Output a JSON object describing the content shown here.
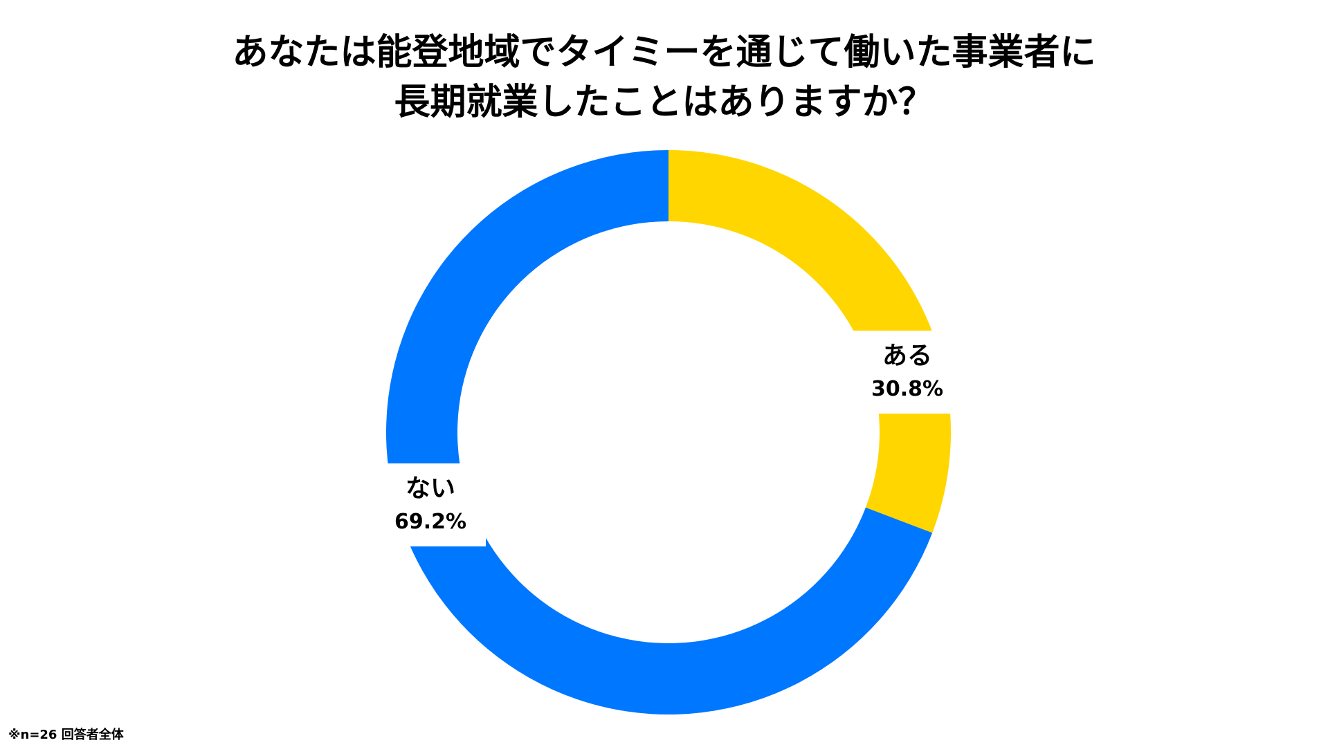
{
  "chart_data": {
    "type": "pie",
    "variant": "donut",
    "title_lines": [
      "あなたは能登地域でタイミーを通じて働いた事業者に",
      "長期就業したことはありますか？"
    ],
    "slices": [
      {
        "name": "ある",
        "value": 30.8,
        "value_label": "30.8%",
        "color": "#FFD600"
      },
      {
        "name": "ない",
        "value": 69.2,
        "value_label": "69.2%",
        "color": "#0077FF"
      }
    ],
    "start_angle_deg": 0,
    "direction": "clockwise"
  },
  "footnote": "※n=26 回答者全体"
}
